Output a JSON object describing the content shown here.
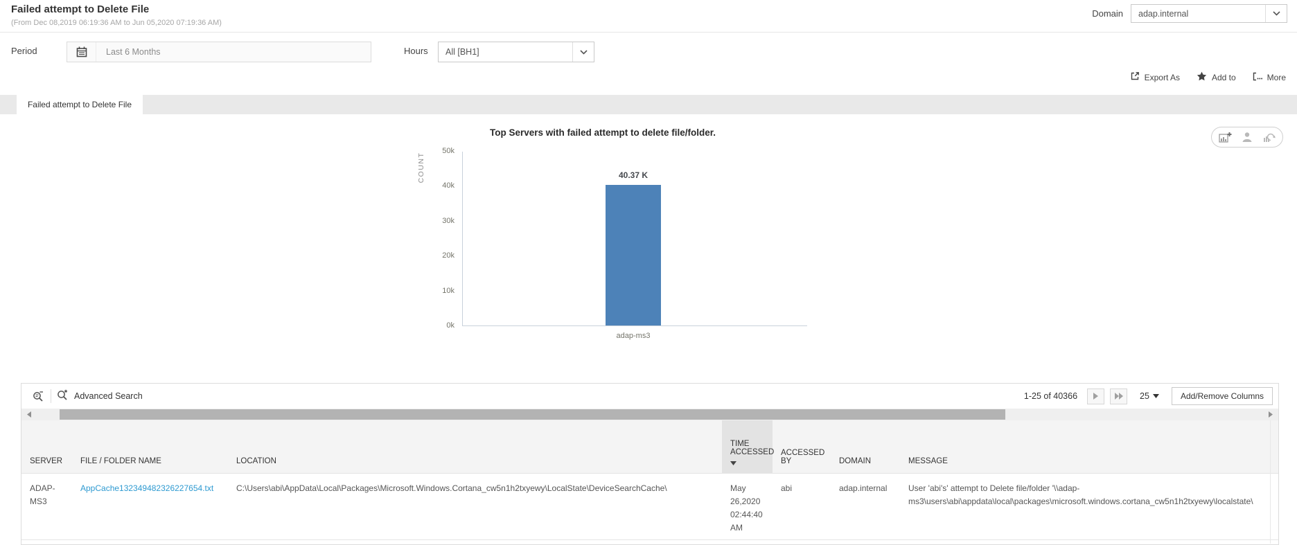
{
  "page": {
    "title": "Failed attempt to Delete File",
    "subtitle": "(From Dec 08,2019 06:19:36 AM to Jun 05,2020 07:19:36 AM)"
  },
  "domain_filter": {
    "label": "Domain",
    "value": "adap.internal"
  },
  "filters": {
    "period_label": "Period",
    "period_value": "Last 6 Months",
    "hours_label": "Hours",
    "hours_value": "All [BH1]"
  },
  "actions": {
    "export_as": "Export As",
    "add_to": "Add to",
    "more": "More"
  },
  "tab": {
    "label": "Failed attempt to Delete File"
  },
  "chart_data": {
    "type": "bar",
    "title": "Top Servers with failed attempt to delete file/folder.",
    "ylabel": "COUNT",
    "xlabel": "",
    "categories": [
      "adap-ms3"
    ],
    "values": [
      40366
    ],
    "value_labels": [
      "40.37 K"
    ],
    "ylim": [
      0,
      50000
    ],
    "yticks": [
      "50k",
      "40k",
      "30k",
      "20k",
      "10k",
      "0k"
    ],
    "grid": false,
    "legend": "none",
    "bar_color": "#4d82b8"
  },
  "table": {
    "toolbar": {
      "advanced_search": "Advanced Search",
      "pagination": "1-25 of 40366",
      "page_size": "25",
      "add_remove_columns": "Add/Remove Columns"
    },
    "columns": [
      "SERVER",
      "FILE / FOLDER NAME",
      "LOCATION",
      "TIME ACCESSED",
      "ACCESSED BY",
      "DOMAIN",
      "MESSAGE"
    ],
    "sorted_column": "TIME ACCESSED",
    "rows": [
      {
        "server": "ADAP-MS3",
        "file_name": "AppCache132349482326227654.txt",
        "location": "C:\\Users\\abi\\AppData\\Local\\Packages\\Microsoft.Windows.Cortana_cw5n1h2txyewy\\LocalState\\DeviceSearchCache\\",
        "time_accessed": "May 26,2020 02:44:40 AM",
        "accessed_by": "abi",
        "domain": "adap.internal",
        "message": "User 'abi's' attempt to Delete file/folder '\\\\adap-ms3\\users\\abi\\appdata\\local\\packages\\microsoft.windows.cortana_cw5n1h2txyewy\\localstate\\"
      }
    ]
  },
  "colors": {
    "bar": "#4d82b8",
    "link": "#2e9ad1",
    "tab_strip": "#e9e9e9",
    "header_bg": "#f4f4f4",
    "sorted_header_bg": "#e3e3e3"
  }
}
